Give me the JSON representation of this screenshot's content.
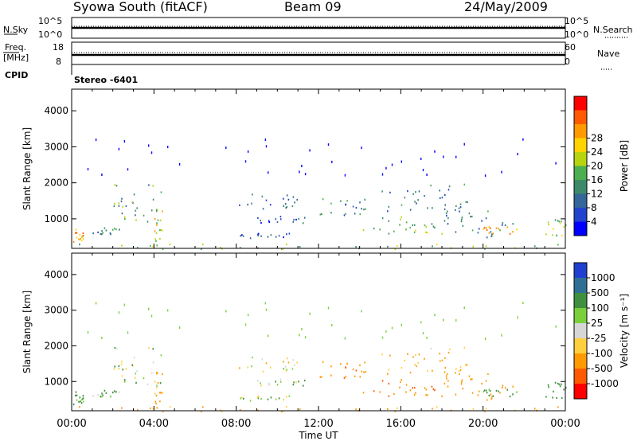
{
  "header": {
    "title": "Syowa South (fitACF)",
    "beam": "Beam 09",
    "date": "24/May/2009"
  },
  "panels": {
    "nsky": {
      "left_label": "N.Sky",
      "right_label": "N.Search",
      "tick_top": "10^5",
      "tick_bottom": "10^0"
    },
    "freq": {
      "left_label": "Freq.",
      "unit": "[MHz]",
      "right_label": "Nave",
      "left_ticks": [
        "18",
        "8"
      ],
      "right_ticks": [
        "60",
        "0"
      ]
    },
    "cpid": {
      "label": "CPID",
      "mode": "Stereo -6401"
    }
  },
  "colors": {
    "power": [
      "#0000ff",
      "#2244cc",
      "#336699",
      "#3d8a6a",
      "#4caf50",
      "#b8d40e",
      "#ffd400",
      "#ff9a00",
      "#ff5a00",
      "#ff0000"
    ],
    "velocity": [
      "#ff0000",
      "#ff5a00",
      "#ff9a00",
      "#ffcf40",
      "#d6d6d6",
      "#7ad03a",
      "#3f8f3f",
      "#2f6f95",
      "#1f3fd0"
    ]
  },
  "chart_data": [
    {
      "type": "heatmap",
      "title": "",
      "xlabel": "Time UT",
      "ylabel": "Slant Range [km]",
      "xlim": [
        0,
        24
      ],
      "ylim": [
        180,
        4600
      ],
      "x_ticks": [
        "00:00",
        "04:00",
        "08:00",
        "12:00",
        "16:00",
        "20:00",
        "00:00"
      ],
      "y_ticks": [
        1000,
        2000,
        3000,
        4000
      ],
      "colorbar": {
        "label": "Power [dB]",
        "ticks": [
          "4",
          "8",
          "12",
          "16",
          "20",
          "24",
          "28"
        ],
        "range": [
          0,
          30
        ]
      },
      "echo_regions": [
        {
          "t0": 0.0,
          "t1": 24.0,
          "r0": 180,
          "r1": 320,
          "value": 14
        },
        {
          "t0": 0.0,
          "t1": 0.6,
          "r0": 300,
          "r1": 750,
          "value": 22
        },
        {
          "t0": 1.0,
          "t1": 2.4,
          "r0": 550,
          "r1": 800,
          "value": 10
        },
        {
          "t0": 2.0,
          "t1": 4.4,
          "r0": 800,
          "r1": 2000,
          "value": 12
        },
        {
          "t0": 4.0,
          "t1": 4.4,
          "r0": 400,
          "r1": 1300,
          "value": 18
        },
        {
          "t0": 8.0,
          "t1": 11.0,
          "r0": 1300,
          "r1": 1700,
          "value": 8
        },
        {
          "t0": 9.0,
          "t1": 11.5,
          "r0": 900,
          "r1": 1100,
          "value": 6
        },
        {
          "t0": 8.0,
          "t1": 11.2,
          "r0": 480,
          "r1": 620,
          "value": 6
        },
        {
          "t0": 12.0,
          "t1": 14.5,
          "r0": 1100,
          "r1": 1600,
          "value": 10
        },
        {
          "t0": 14.0,
          "t1": 18.0,
          "r0": 600,
          "r1": 1100,
          "value": 14
        },
        {
          "t0": 15.0,
          "t1": 19.5,
          "r0": 1200,
          "r1": 2000,
          "value": 8
        },
        {
          "t0": 18.0,
          "t1": 21.5,
          "r0": 500,
          "r1": 1300,
          "value": 10
        },
        {
          "t0": 20.0,
          "t1": 21.8,
          "r0": 600,
          "r1": 800,
          "value": 22
        },
        {
          "t0": 23.0,
          "t1": 24.0,
          "r0": 500,
          "r1": 1000,
          "value": 16
        }
      ]
    },
    {
      "type": "heatmap",
      "title": "",
      "xlabel": "Time UT",
      "ylabel": "Slant Range [km]",
      "xlim": [
        0,
        24
      ],
      "ylim": [
        180,
        4600
      ],
      "x_ticks": [
        "00:00",
        "04:00",
        "08:00",
        "12:00",
        "16:00",
        "20:00",
        "00:00"
      ],
      "y_ticks": [
        1000,
        2000,
        3000,
        4000
      ],
      "colorbar": {
        "label": "Velocity [m s⁻¹]",
        "ticks": [
          "1000",
          "500",
          "100",
          "25",
          "-25",
          "-100",
          "-500",
          "-1000"
        ]
      },
      "echo_regions": [
        {
          "t0": 0.0,
          "t1": 24.0,
          "r0": 180,
          "r1": 320,
          "value": -150
        },
        {
          "t0": 0.0,
          "t1": 0.6,
          "r0": 300,
          "r1": 750,
          "value": 200
        },
        {
          "t0": 1.0,
          "t1": 2.4,
          "r0": 550,
          "r1": 800,
          "value": 100
        },
        {
          "t0": 2.0,
          "t1": 4.4,
          "r0": 800,
          "r1": 2000,
          "value": 50
        },
        {
          "t0": 4.0,
          "t1": 4.4,
          "r0": 400,
          "r1": 1300,
          "value": -200
        },
        {
          "t0": 8.0,
          "t1": 11.0,
          "r0": 1300,
          "r1": 1700,
          "value": -30
        },
        {
          "t0": 9.0,
          "t1": 11.5,
          "r0": 900,
          "r1": 1100,
          "value": 60
        },
        {
          "t0": 8.0,
          "t1": 11.2,
          "r0": 480,
          "r1": 620,
          "value": 40
        },
        {
          "t0": 12.0,
          "t1": 14.5,
          "r0": 1100,
          "r1": 1600,
          "value": -400
        },
        {
          "t0": 14.0,
          "t1": 18.0,
          "r0": 600,
          "r1": 1100,
          "value": -450
        },
        {
          "t0": 15.0,
          "t1": 19.5,
          "r0": 1200,
          "r1": 2000,
          "value": -150
        },
        {
          "t0": 18.0,
          "t1": 21.5,
          "r0": 500,
          "r1": 1300,
          "value": -250
        },
        {
          "t0": 20.0,
          "t1": 21.8,
          "r0": 600,
          "r1": 800,
          "value": 150
        },
        {
          "t0": 23.0,
          "t1": 24.0,
          "r0": 500,
          "r1": 1000,
          "value": 300
        }
      ]
    }
  ]
}
